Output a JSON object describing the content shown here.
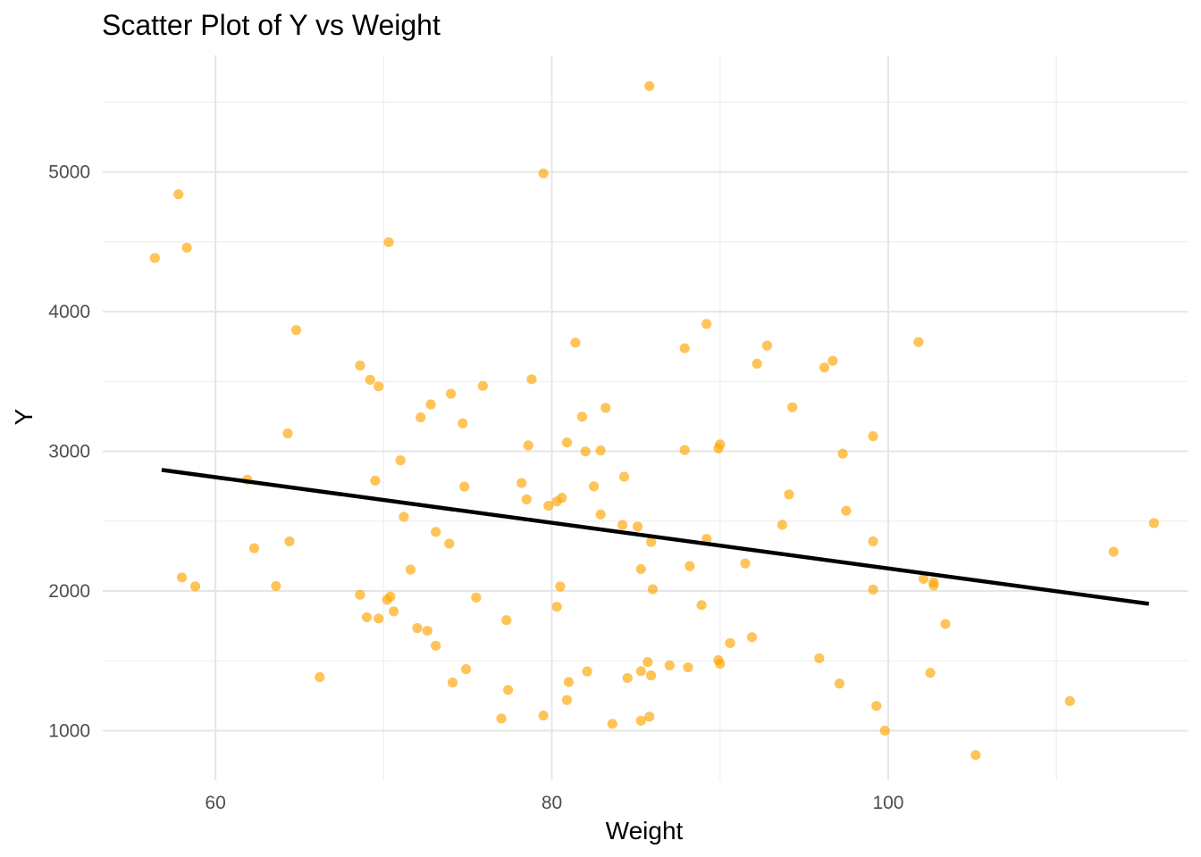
{
  "chart_data": {
    "type": "scatter",
    "title": "Scatter Plot of Y vs Weight",
    "xlabel": "Weight",
    "ylabel": "Y",
    "xlim": [
      53.3,
      117.8
    ],
    "ylim": [
      645,
      5835
    ],
    "x_ticks": [
      60,
      80,
      100
    ],
    "y_ticks": [
      1000,
      2000,
      3000,
      4000,
      5000
    ],
    "grid": true,
    "point_color": "#FFA500",
    "trend_color": "#000000",
    "trend_line": {
      "type": "linear",
      "x": [
        56.8,
        115.5
      ],
      "y": [
        2867,
        1908
      ]
    },
    "points": [
      {
        "x": 85.8,
        "y": 5615
      },
      {
        "x": 79.5,
        "y": 4990
      },
      {
        "x": 57.8,
        "y": 4840
      },
      {
        "x": 70.3,
        "y": 4497
      },
      {
        "x": 58.3,
        "y": 4458
      },
      {
        "x": 56.4,
        "y": 4384
      },
      {
        "x": 64.8,
        "y": 3868
      },
      {
        "x": 89.2,
        "y": 3912
      },
      {
        "x": 81.4,
        "y": 3778
      },
      {
        "x": 87.9,
        "y": 3738
      },
      {
        "x": 92.8,
        "y": 3757
      },
      {
        "x": 101.8,
        "y": 3782
      },
      {
        "x": 68.6,
        "y": 3614
      },
      {
        "x": 92.2,
        "y": 3627
      },
      {
        "x": 96.7,
        "y": 3648
      },
      {
        "x": 96.2,
        "y": 3600
      },
      {
        "x": 69.2,
        "y": 3512
      },
      {
        "x": 69.7,
        "y": 3465
      },
      {
        "x": 78.8,
        "y": 3516
      },
      {
        "x": 75.9,
        "y": 3468
      },
      {
        "x": 74.0,
        "y": 3412
      },
      {
        "x": 72.8,
        "y": 3336
      },
      {
        "x": 72.2,
        "y": 3243
      },
      {
        "x": 81.8,
        "y": 3248
      },
      {
        "x": 83.2,
        "y": 3311
      },
      {
        "x": 94.3,
        "y": 3315
      },
      {
        "x": 74.7,
        "y": 3200
      },
      {
        "x": 64.3,
        "y": 3128
      },
      {
        "x": 99.1,
        "y": 3108
      },
      {
        "x": 78.6,
        "y": 3042
      },
      {
        "x": 80.9,
        "y": 3063
      },
      {
        "x": 90.0,
        "y": 3049
      },
      {
        "x": 89.9,
        "y": 3021
      },
      {
        "x": 82.0,
        "y": 2999
      },
      {
        "x": 82.9,
        "y": 3006
      },
      {
        "x": 87.9,
        "y": 3009
      },
      {
        "x": 97.3,
        "y": 2983
      },
      {
        "x": 71.0,
        "y": 2935
      },
      {
        "x": 84.3,
        "y": 2818
      },
      {
        "x": 61.9,
        "y": 2797
      },
      {
        "x": 69.5,
        "y": 2790
      },
      {
        "x": 78.2,
        "y": 2773
      },
      {
        "x": 74.8,
        "y": 2747
      },
      {
        "x": 82.5,
        "y": 2749
      },
      {
        "x": 94.1,
        "y": 2691
      },
      {
        "x": 80.6,
        "y": 2667
      },
      {
        "x": 78.5,
        "y": 2656
      },
      {
        "x": 80.3,
        "y": 2641
      },
      {
        "x": 79.8,
        "y": 2610
      },
      {
        "x": 97.5,
        "y": 2574
      },
      {
        "x": 82.9,
        "y": 2548
      },
      {
        "x": 71.2,
        "y": 2531
      },
      {
        "x": 84.2,
        "y": 2473
      },
      {
        "x": 85.1,
        "y": 2461
      },
      {
        "x": 93.7,
        "y": 2474
      },
      {
        "x": 115.8,
        "y": 2486
      },
      {
        "x": 73.1,
        "y": 2423
      },
      {
        "x": 89.2,
        "y": 2373
      },
      {
        "x": 64.4,
        "y": 2355
      },
      {
        "x": 73.9,
        "y": 2339
      },
      {
        "x": 85.9,
        "y": 2351
      },
      {
        "x": 99.1,
        "y": 2355
      },
      {
        "x": 62.3,
        "y": 2306
      },
      {
        "x": 113.4,
        "y": 2281
      },
      {
        "x": 91.5,
        "y": 2197
      },
      {
        "x": 88.2,
        "y": 2178
      },
      {
        "x": 71.6,
        "y": 2153
      },
      {
        "x": 85.3,
        "y": 2157
      },
      {
        "x": 58.0,
        "y": 2097
      },
      {
        "x": 102.1,
        "y": 2087
      },
      {
        "x": 102.7,
        "y": 2061
      },
      {
        "x": 102.7,
        "y": 2040
      },
      {
        "x": 58.8,
        "y": 2033
      },
      {
        "x": 63.6,
        "y": 2035
      },
      {
        "x": 80.5,
        "y": 2032
      },
      {
        "x": 86.0,
        "y": 2012
      },
      {
        "x": 99.1,
        "y": 2010
      },
      {
        "x": 68.6,
        "y": 1973
      },
      {
        "x": 70.4,
        "y": 1960
      },
      {
        "x": 70.2,
        "y": 1937
      },
      {
        "x": 75.5,
        "y": 1953
      },
      {
        "x": 88.9,
        "y": 1899
      },
      {
        "x": 80.3,
        "y": 1887
      },
      {
        "x": 70.6,
        "y": 1854
      },
      {
        "x": 69.0,
        "y": 1812
      },
      {
        "x": 69.7,
        "y": 1803
      },
      {
        "x": 77.3,
        "y": 1791
      },
      {
        "x": 103.4,
        "y": 1764
      },
      {
        "x": 72.0,
        "y": 1734
      },
      {
        "x": 72.6,
        "y": 1715
      },
      {
        "x": 91.9,
        "y": 1669
      },
      {
        "x": 90.6,
        "y": 1627
      },
      {
        "x": 73.1,
        "y": 1608
      },
      {
        "x": 95.9,
        "y": 1518
      },
      {
        "x": 89.9,
        "y": 1505
      },
      {
        "x": 90.0,
        "y": 1479
      },
      {
        "x": 85.7,
        "y": 1491
      },
      {
        "x": 87.0,
        "y": 1467
      },
      {
        "x": 88.1,
        "y": 1453
      },
      {
        "x": 74.9,
        "y": 1440
      },
      {
        "x": 82.1,
        "y": 1424
      },
      {
        "x": 85.3,
        "y": 1426
      },
      {
        "x": 102.5,
        "y": 1414
      },
      {
        "x": 85.9,
        "y": 1395
      },
      {
        "x": 66.2,
        "y": 1383
      },
      {
        "x": 84.5,
        "y": 1377
      },
      {
        "x": 81.0,
        "y": 1348
      },
      {
        "x": 74.1,
        "y": 1345
      },
      {
        "x": 97.1,
        "y": 1337
      },
      {
        "x": 77.4,
        "y": 1291
      },
      {
        "x": 80.9,
        "y": 1219
      },
      {
        "x": 110.8,
        "y": 1212
      },
      {
        "x": 99.3,
        "y": 1177
      },
      {
        "x": 79.5,
        "y": 1108
      },
      {
        "x": 77.0,
        "y": 1087
      },
      {
        "x": 85.8,
        "y": 1100
      },
      {
        "x": 85.3,
        "y": 1071
      },
      {
        "x": 83.6,
        "y": 1049
      },
      {
        "x": 99.8,
        "y": 1000
      },
      {
        "x": 105.2,
        "y": 825
      }
    ]
  }
}
